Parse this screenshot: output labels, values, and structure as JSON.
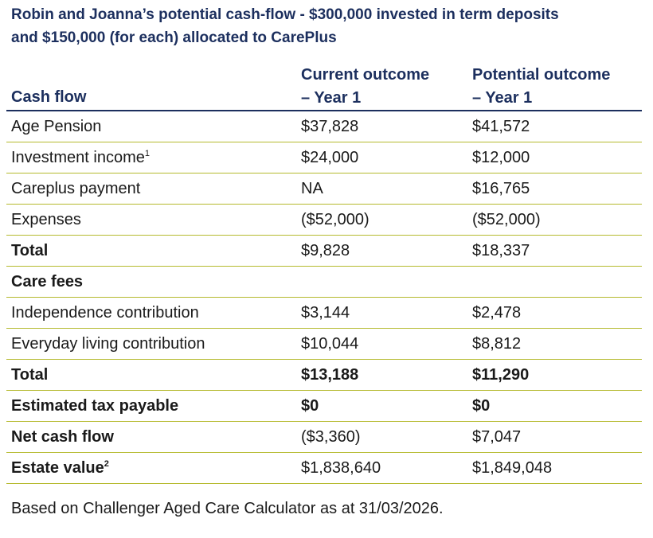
{
  "title": {
    "line1": "Robin and Joanna’s potential cash-flow - $300,000 invested in term deposits",
    "line2": "and $150,000 (for each) allocated to CarePlus"
  },
  "table": {
    "headers": {
      "label": "Cash flow",
      "current_line1": "Current outcome",
      "current_line2": "– Year 1",
      "potential_line1": "Potential outcome",
      "potential_line2": "– Year 1"
    },
    "rows": [
      {
        "label": "Age Pension",
        "current": "$37,828",
        "potential": "$41,572"
      },
      {
        "label": "Investment income",
        "sup": "1",
        "current": "$24,000",
        "potential": "$12,000"
      },
      {
        "label": "Careplus payment",
        "current": "NA",
        "potential": "$16,765"
      },
      {
        "label": "Expenses",
        "current": "($52,000)",
        "potential": "($52,000)"
      },
      {
        "label": "Total",
        "current": "$9,828",
        "potential": "$18,337"
      },
      {
        "label": "Care fees",
        "current": "",
        "potential": ""
      },
      {
        "label": "Independence contribution",
        "current": "$3,144",
        "potential": "$2,478"
      },
      {
        "label": "Everyday living contribution",
        "current": "$10,044",
        "potential": "$8,812"
      },
      {
        "label": "Total",
        "current": "$13,188",
        "potential": "$11,290"
      },
      {
        "label": "Estimated tax payable",
        "current": "$0",
        "potential": "$0"
      },
      {
        "label": "Net cash flow",
        "current": "($3,360)",
        "potential": "$7,047"
      },
      {
        "label": "Estate value",
        "sup": "2",
        "current": "$1,838,640",
        "potential": "$1,849,048"
      }
    ]
  },
  "footnote": "Based on Challenger Aged Care Calculator as at 31/03/2026.",
  "colors": {
    "heading_navy": "#1c2f5e",
    "rule_olive": "#b5ba2e"
  }
}
